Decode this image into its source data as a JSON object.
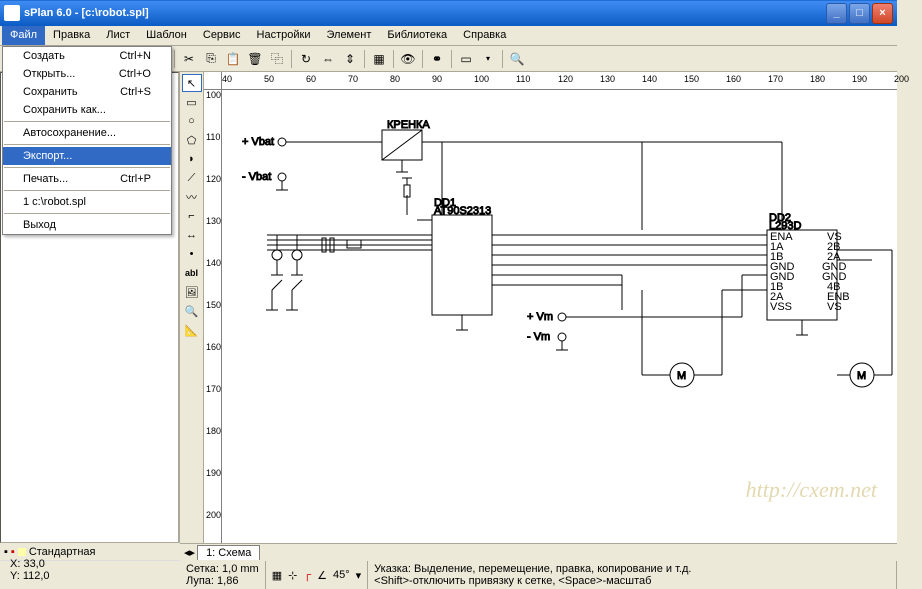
{
  "window": {
    "title": "sPlan 6.0 - [c:\\robot.spl]"
  },
  "menubar": [
    "Файл",
    "Правка",
    "Лист",
    "Шаблон",
    "Сервис",
    "Настройки",
    "Элемент",
    "Библиотека",
    "Справка"
  ],
  "file_menu": [
    {
      "label": "Создать",
      "shortcut": "Ctrl+N"
    },
    {
      "label": "Открыть...",
      "shortcut": "Ctrl+O"
    },
    {
      "label": "Сохранить",
      "shortcut": "Ctrl+S"
    },
    {
      "label": "Сохранить как...",
      "shortcut": ""
    },
    {
      "sep": true
    },
    {
      "label": "Автосохранение...",
      "shortcut": ""
    },
    {
      "sep": true
    },
    {
      "label": "Экспорт...",
      "shortcut": "",
      "hl": true
    },
    {
      "sep": true
    },
    {
      "label": "Печать...",
      "shortcut": "Ctrl+P"
    },
    {
      "sep": true
    },
    {
      "label": "1 c:\\robot.spl",
      "shortcut": ""
    },
    {
      "sep": true
    },
    {
      "label": "Выход",
      "shortcut": ""
    }
  ],
  "ruler_h": [
    40,
    50,
    60,
    70,
    80,
    90,
    100,
    110,
    120,
    130,
    140,
    150,
    160,
    170,
    180,
    190,
    200
  ],
  "ruler_v": [
    100,
    110,
    120,
    130,
    140,
    150,
    160,
    170,
    180,
    190,
    200
  ],
  "status": {
    "layer": "Стандартная",
    "tab": "1: Схема",
    "x": "X: 33,0",
    "y": "Y: 112,0",
    "grid": "Сетка:   1,0 mm",
    "zoom": "Лупа:   1,86",
    "angle": "45°",
    "hint1": "Указка: Выделение, перемещение, правка, копирование и т.д.",
    "hint2": "<Shift>-отключить привязку к сетке, <Space>-масштаб"
  },
  "schematic": {
    "labels": {
      "vbat_plus": "+ Vbat",
      "vbat_minus": "- Vbat",
      "vm_plus": "+ Vm",
      "vm_minus": "- Vm",
      "dd1_ref": "DD1",
      "dd1_part": "AT90S2313",
      "dd2_ref": "DD2",
      "dd2_part": "L293D",
      "m1": "M",
      "m2": "M",
      "kpehka": "КРЕНКА"
    }
  },
  "watermark": "http://cxem.net"
}
